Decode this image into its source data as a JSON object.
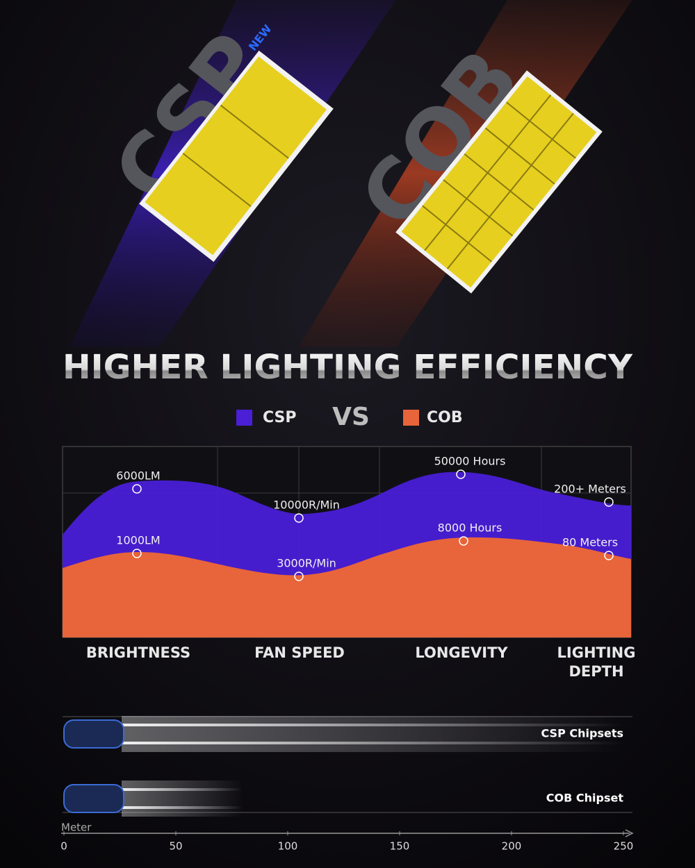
{
  "hero": {
    "csp": "CSP",
    "new": "NEW",
    "cob": "COB"
  },
  "title": "HIGHER LIGHTING EFFICIENCY",
  "legend": {
    "items": [
      {
        "name": "CSP",
        "color": "#4a1fd6"
      },
      {
        "name": "COB",
        "color": "#e8643a"
      }
    ],
    "vs": "VS"
  },
  "comparison": {
    "categories": [
      "BRIGHTNESS",
      "FAN SPEED",
      "LONGEVITY",
      "LIGHTING DEPTH"
    ],
    "csp_labels": [
      "6000LM",
      "10000R/Min",
      "50000 Hours",
      "200+ Meters"
    ],
    "cob_labels": [
      "1000LM",
      "3000R/Min",
      "8000 Hours",
      "80 Meters"
    ]
  },
  "range": {
    "axis_label": "Meter",
    "xlim": [
      0,
      250
    ],
    "xticks": [
      0,
      50,
      100,
      150,
      200,
      250
    ],
    "series": [
      {
        "name": "CSP Chipsets",
        "value": 250
      },
      {
        "name": "COB Chipset",
        "value": 80
      }
    ]
  }
}
